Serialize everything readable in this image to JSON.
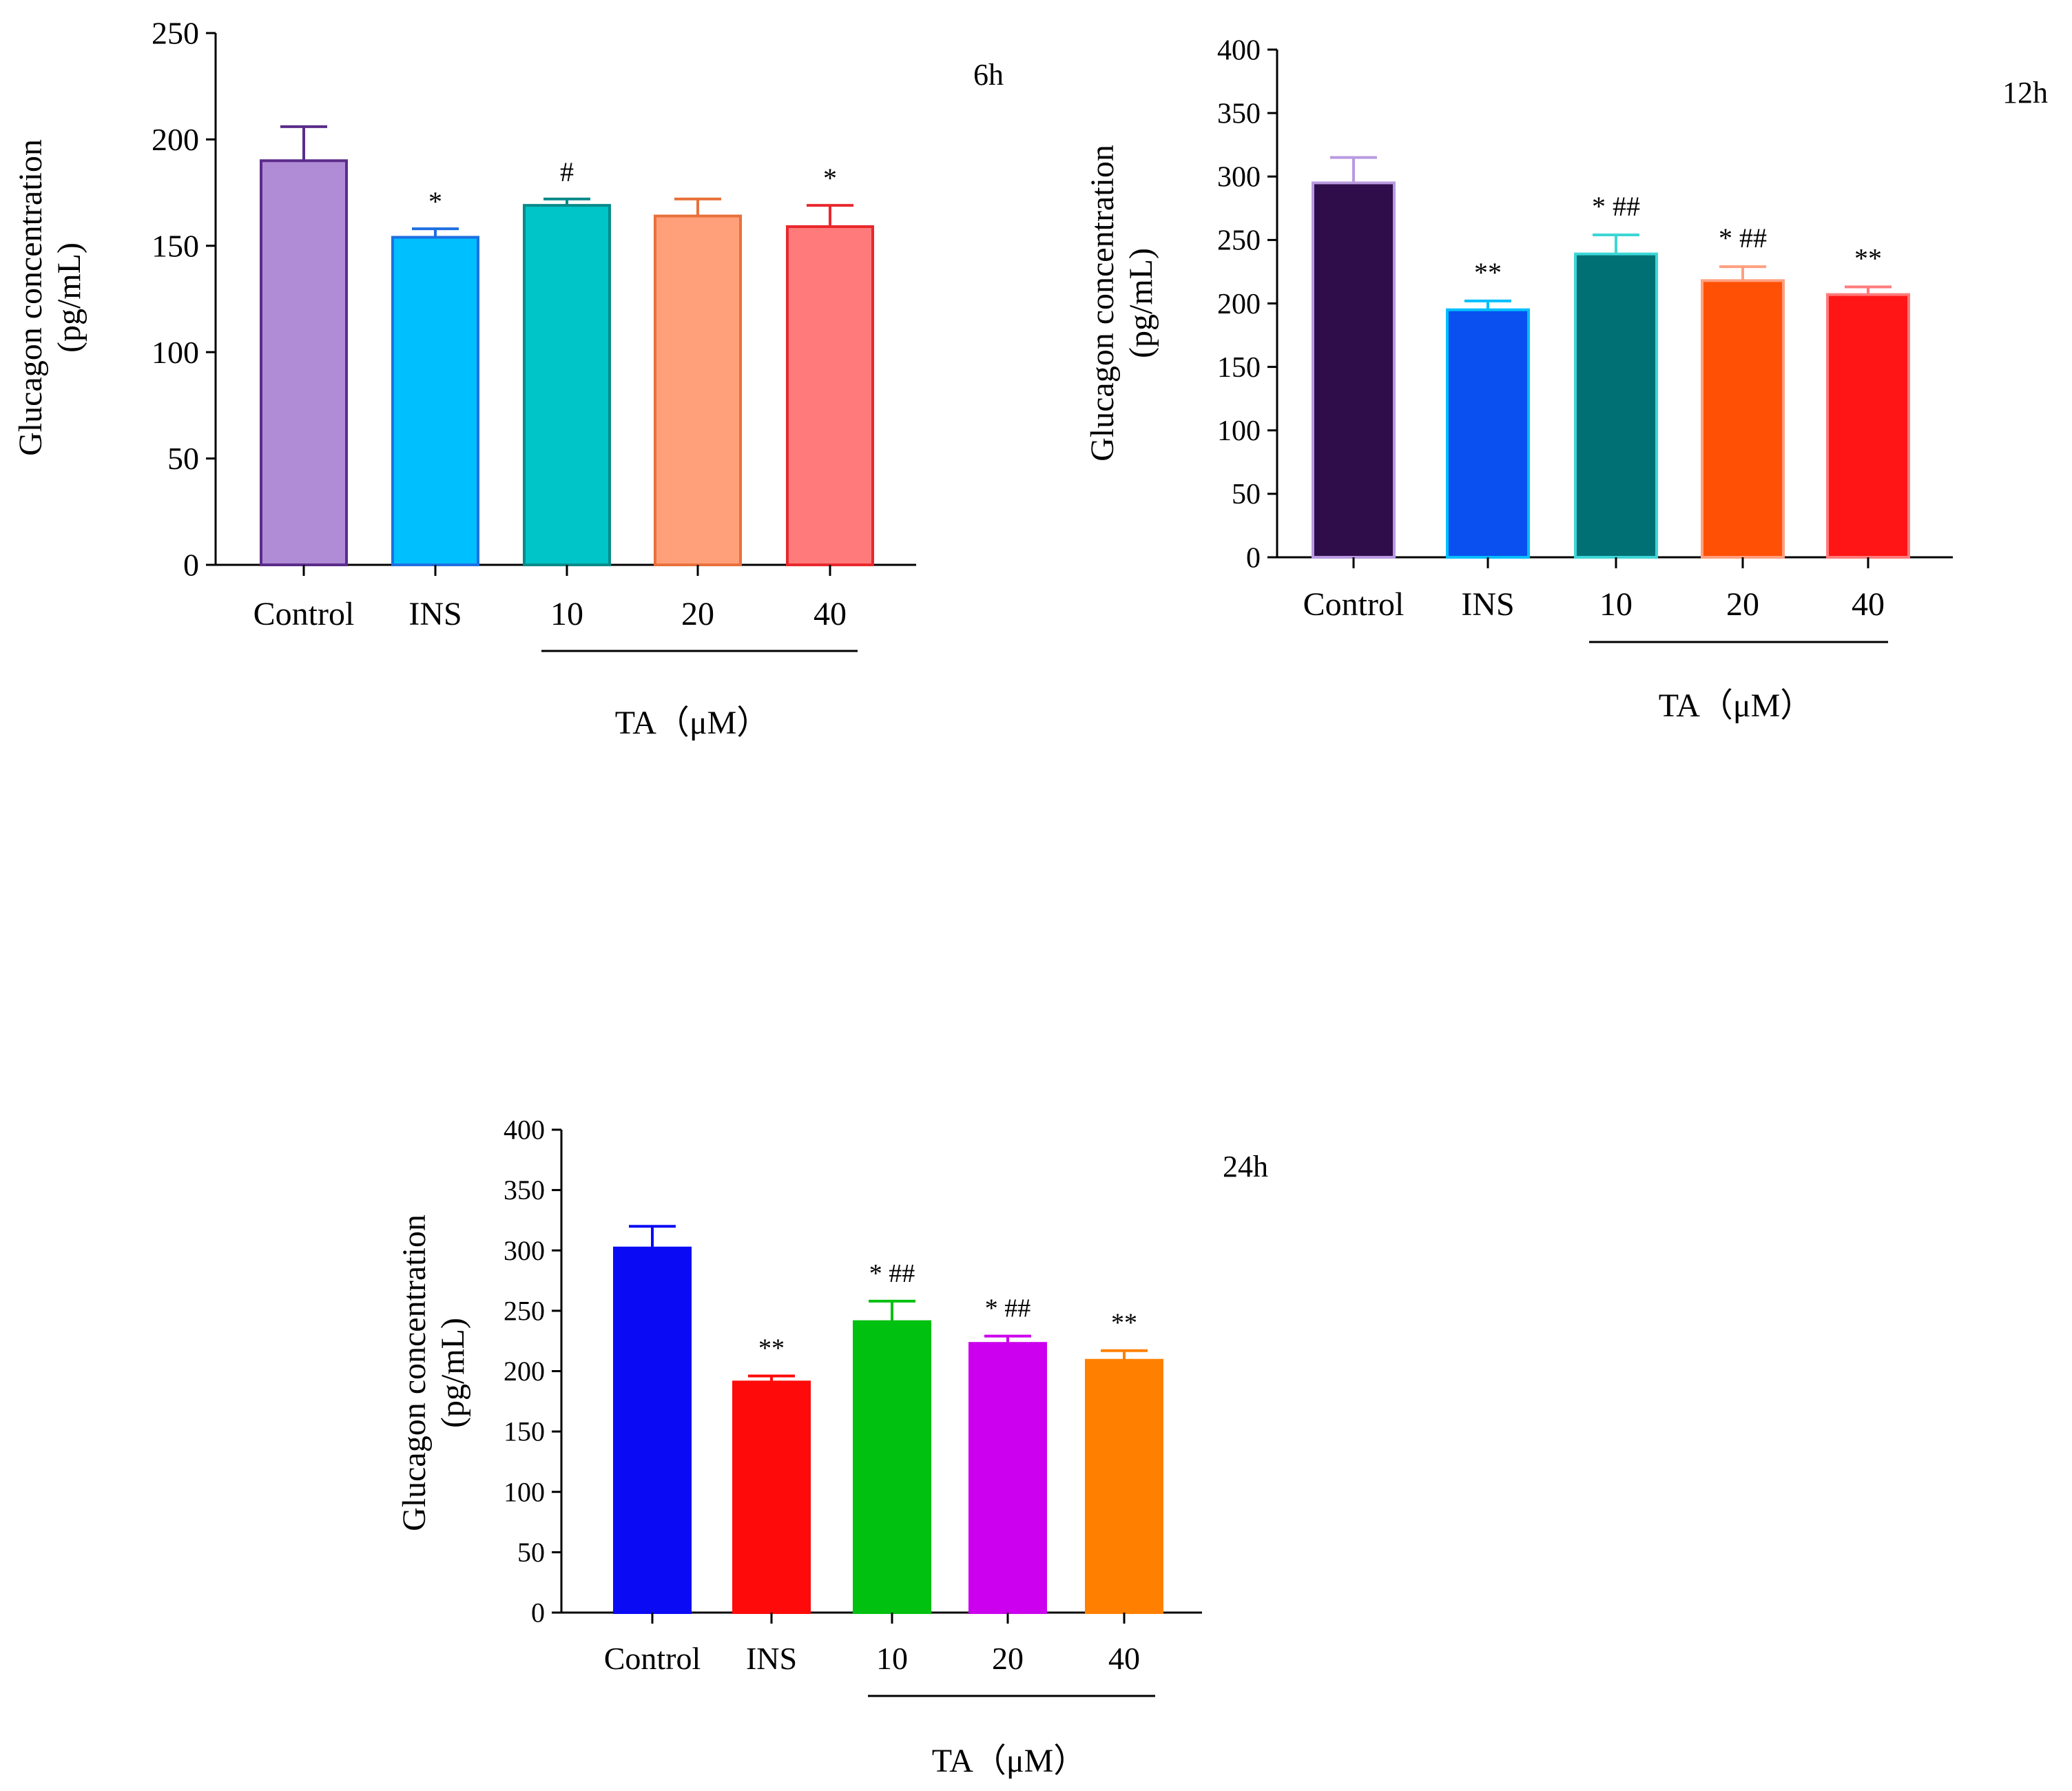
{
  "chart_data": [
    {
      "type": "bar",
      "panel_label": "6h",
      "categories": [
        "Control",
        "INS",
        "10",
        "20",
        "40"
      ],
      "values": [
        190,
        154,
        169,
        164,
        159
      ],
      "errors": [
        16,
        4,
        3,
        8,
        10
      ],
      "significance": [
        "",
        "*",
        "#",
        "",
        "*"
      ],
      "ylabel_line1": "Glucagon concentration",
      "ylabel_line2": "(pg/mL)",
      "ylim": [
        0,
        250
      ],
      "yticks": [
        0,
        50,
        100,
        150,
        200,
        250
      ],
      "group_label": "TA（μM）",
      "colors": [
        "#B08BD6",
        "#00BFFF",
        "#00C5C8",
        "#FFA07A",
        "#FF7B7B"
      ],
      "edge_colors": [
        "#5B2C8A",
        "#1F6FE0",
        "#0A8A8A",
        "#E8703A",
        "#E8282C"
      ]
    },
    {
      "type": "bar",
      "panel_label": "12h",
      "categories": [
        "Control",
        "INS",
        "10",
        "20",
        "40"
      ],
      "values": [
        295,
        195,
        239,
        218,
        207
      ],
      "errors": [
        20,
        7,
        15,
        11,
        6
      ],
      "significance": [
        "",
        "**",
        "* ##",
        "* ##",
        "**"
      ],
      "ylabel_line1": "Glucagon concentration",
      "ylabel_line2": "(pg/mL)",
      "ylim": [
        0,
        400
      ],
      "yticks": [
        0,
        50,
        100,
        150,
        200,
        250,
        300,
        350,
        400
      ],
      "group_label": "TA（μM）",
      "colors": [
        "#2E0D4A",
        "#0A4FF0",
        "#007075",
        "#FF5005",
        "#FF1515"
      ],
      "edge_colors": [
        "#B89AE0",
        "#00BFFF",
        "#3DD6D6",
        "#FF9F7F",
        "#FF7B7B"
      ]
    },
    {
      "type": "bar",
      "panel_label": "24h",
      "categories": [
        "Control",
        "INS",
        "10",
        "20",
        "40"
      ],
      "values": [
        302,
        191,
        241,
        223,
        209
      ],
      "errors": [
        18,
        5,
        17,
        6,
        8
      ],
      "significance": [
        "",
        "**",
        "* ##",
        "* ##",
        "**"
      ],
      "ylabel_line1": "Glucagon concentration",
      "ylabel_line2": "(pg/mL)",
      "ylim": [
        0,
        400
      ],
      "yticks": [
        0,
        50,
        100,
        150,
        200,
        250,
        300,
        350,
        400
      ],
      "group_label": "TA（μM）",
      "colors": [
        "#0A0AF5",
        "#FF0A0A",
        "#00C010",
        "#CC00EE",
        "#FF8000"
      ],
      "edge_colors": [
        "#0A0AF5",
        "#FF0A0A",
        "#00C010",
        "#CC00EE",
        "#FF8000"
      ]
    }
  ]
}
